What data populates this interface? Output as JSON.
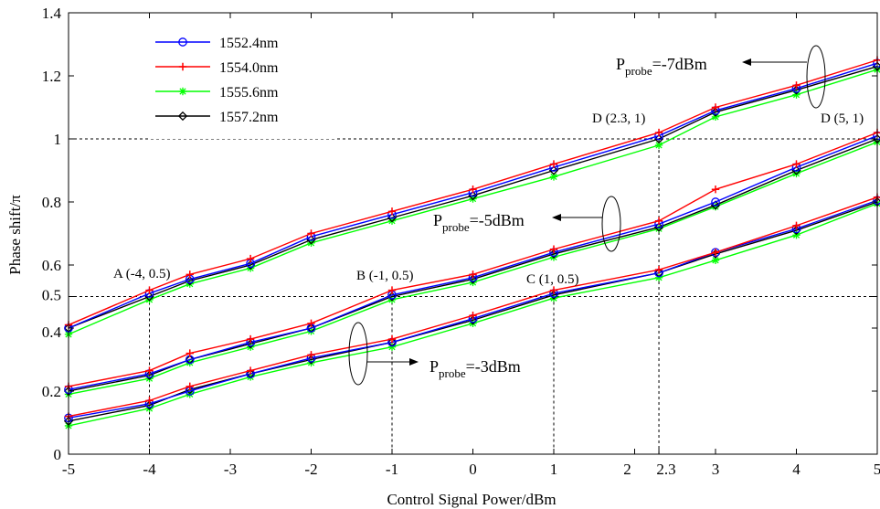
{
  "chart_data": {
    "type": "line",
    "xlabel": "Control Signal Power/dBm",
    "ylabel": "Phase shift/π",
    "xlim": [
      -5,
      5
    ],
    "ylim": [
      0,
      1.4
    ],
    "x_ticks": [
      -5,
      -4,
      -3,
      -2,
      -1,
      0,
      1,
      2,
      2.3,
      3,
      4,
      5
    ],
    "x_tick_labels": [
      "-5",
      "-4",
      "-3",
      "-2",
      "-1",
      "0",
      "1",
      "2",
      "2.3",
      "3",
      "4",
      "5"
    ],
    "y_ticks": [
      0,
      0.2,
      0.4,
      0.5,
      0.6,
      0.8,
      1,
      1.2,
      1.4
    ],
    "y_tick_labels": [
      "0",
      "0.2",
      "0.4",
      "0.5",
      "0.6",
      "0.8",
      "1",
      "1.2",
      "1.4"
    ],
    "grid": false,
    "legend_position": "top-left",
    "x": [
      -5,
      -4,
      -3.5,
      -2.75,
      -2,
      -1,
      0,
      1,
      2.3,
      3,
      4,
      5
    ],
    "series": [
      {
        "name": "1552.4nm",
        "color": "#0000ff",
        "marker": "circle",
        "group": "Pprobe=-7dBm",
        "values": [
          0.4,
          0.51,
          0.555,
          0.605,
          0.69,
          0.76,
          0.83,
          0.91,
          1.01,
          1.09,
          1.16,
          1.24
        ]
      },
      {
        "name": "1554.0nm",
        "color": "#ff0000",
        "marker": "plus",
        "group": "Pprobe=-7dBm",
        "values": [
          0.41,
          0.52,
          0.57,
          0.62,
          0.7,
          0.77,
          0.84,
          0.92,
          1.02,
          1.1,
          1.17,
          1.25
        ]
      },
      {
        "name": "1555.6nm",
        "color": "#00ff00",
        "marker": "asterisk",
        "group": "Pprobe=-7dBm",
        "values": [
          0.38,
          0.49,
          0.54,
          0.59,
          0.67,
          0.74,
          0.81,
          0.88,
          0.98,
          1.07,
          1.14,
          1.22
        ]
      },
      {
        "name": "1557.2nm",
        "color": "#000000",
        "marker": "diamond",
        "group": "Pprobe=-7dBm",
        "values": [
          0.4,
          0.5,
          0.55,
          0.6,
          0.68,
          0.75,
          0.82,
          0.9,
          1.0,
          1.085,
          1.155,
          1.23
        ]
      },
      {
        "name": "1552.4nm",
        "color": "#0000ff",
        "marker": "circle",
        "group": "Pprobe=-5dBm",
        "values": [
          0.205,
          0.255,
          0.3,
          0.355,
          0.4,
          0.505,
          0.56,
          0.64,
          0.73,
          0.8,
          0.91,
          1.01
        ]
      },
      {
        "name": "1554.0nm",
        "color": "#ff0000",
        "marker": "plus",
        "group": "Pprobe=-5dBm",
        "values": [
          0.215,
          0.265,
          0.32,
          0.365,
          0.415,
          0.52,
          0.57,
          0.65,
          0.74,
          0.84,
          0.92,
          1.02
        ]
      },
      {
        "name": "1555.6nm",
        "color": "#00ff00",
        "marker": "asterisk",
        "group": "Pprobe=-5dBm",
        "values": [
          0.19,
          0.24,
          0.29,
          0.34,
          0.39,
          0.49,
          0.545,
          0.625,
          0.715,
          0.785,
          0.89,
          0.99
        ]
      },
      {
        "name": "1557.2nm",
        "color": "#000000",
        "marker": "diamond",
        "group": "Pprobe=-5dBm",
        "values": [
          0.2,
          0.25,
          0.3,
          0.35,
          0.4,
          0.5,
          0.555,
          0.635,
          0.72,
          0.79,
          0.9,
          1.0
        ]
      },
      {
        "name": "1552.4nm",
        "color": "#0000ff",
        "marker": "circle",
        "group": "Pprobe=-3dBm",
        "values": [
          0.115,
          0.16,
          0.2,
          0.255,
          0.305,
          0.355,
          0.43,
          0.51,
          0.575,
          0.64,
          0.715,
          0.805
        ]
      },
      {
        "name": "1554.0nm",
        "color": "#ff0000",
        "marker": "plus",
        "group": "Pprobe=-3dBm",
        "values": [
          0.12,
          0.17,
          0.215,
          0.265,
          0.315,
          0.365,
          0.44,
          0.52,
          0.585,
          0.64,
          0.725,
          0.815
        ]
      },
      {
        "name": "1555.6nm",
        "color": "#00ff00",
        "marker": "asterisk",
        "group": "Pprobe=-3dBm",
        "values": [
          0.09,
          0.145,
          0.19,
          0.245,
          0.29,
          0.34,
          0.415,
          0.495,
          0.56,
          0.615,
          0.695,
          0.795
        ]
      },
      {
        "name": "1557.2nm",
        "color": "#000000",
        "marker": "diamond",
        "group": "Pprobe=-3dBm",
        "values": [
          0.105,
          0.155,
          0.205,
          0.255,
          0.3,
          0.355,
          0.425,
          0.505,
          0.575,
          0.635,
          0.71,
          0.8
        ]
      }
    ],
    "annotations": {
      "point_A": "A (-4, 0.5)",
      "point_B": "B (-1, 0.5)",
      "point_C": "C (1, 0.5)",
      "point_D1": "D (2.3, 1)",
      "point_D2": "D (5, 1)",
      "probe_m7_main": "P",
      "probe_m7_sub": "probe",
      "probe_m7_value": "=-7dBm",
      "probe_m5_main": "P",
      "probe_m5_sub": "probe",
      "probe_m5_value": "=-5dBm",
      "probe_m3_main": "P",
      "probe_m3_sub": "probe",
      "probe_m3_value": "=-3dBm"
    },
    "legend": [
      {
        "label": "1552.4nm",
        "color": "#0000ff",
        "marker": "circle"
      },
      {
        "label": "1554.0nm",
        "color": "#ff0000",
        "marker": "plus"
      },
      {
        "label": "1555.6nm",
        "color": "#00ff00",
        "marker": "asterisk"
      },
      {
        "label": "1557.2nm",
        "color": "#000000",
        "marker": "diamond"
      }
    ]
  }
}
